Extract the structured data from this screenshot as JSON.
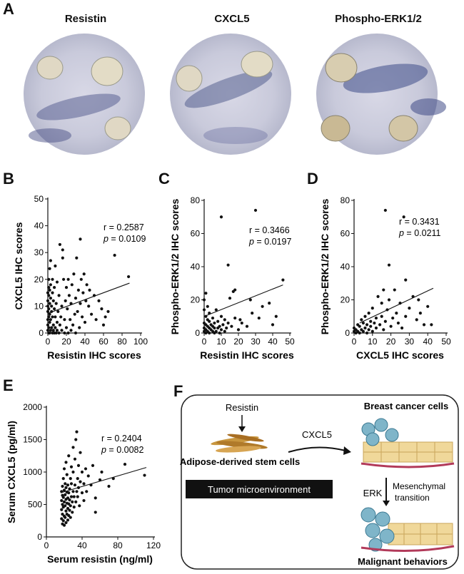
{
  "panels": {
    "A": {
      "letter": "A",
      "stains": [
        {
          "name": "Resistin"
        },
        {
          "name": "CXCL5"
        },
        {
          "name": "Phospho-ERK1/2"
        }
      ]
    },
    "F": {
      "letter": "F",
      "resistin": "Resistin",
      "adsc": "Adipose-derived stem cells",
      "cxcl5": "CXCL5",
      "bcc": "Breast cancer cells",
      "erk": "ERK",
      "mesenchymal": "Mesenchymal",
      "transition": "transition",
      "tme": "Tumor microenvironment",
      "malignant": "Malignant behaviors"
    }
  },
  "chart_data": [
    {
      "id": "B",
      "letter": "B",
      "type": "scatter",
      "xlabel": "Resistin IHC scores",
      "ylabel": "CXCL5 IHC scores",
      "xlim": [
        0,
        100
      ],
      "ylim": [
        0,
        50
      ],
      "xticks": [
        0,
        20,
        40,
        60,
        80,
        100
      ],
      "yticks": [
        0,
        10,
        20,
        30,
        40,
        50
      ],
      "r_text": "r = 0.2587",
      "p_label": "p",
      "p_value": " = 0.0109",
      "fit": [
        [
          0,
          7.3
        ],
        [
          88,
          18.6
        ]
      ],
      "points": [
        [
          0,
          1
        ],
        [
          0,
          3
        ],
        [
          0,
          5
        ],
        [
          0,
          8
        ],
        [
          0,
          10
        ],
        [
          0,
          12
        ],
        [
          0,
          15
        ],
        [
          1,
          0
        ],
        [
          1,
          2
        ],
        [
          1,
          6
        ],
        [
          1,
          9
        ],
        [
          1,
          14
        ],
        [
          1,
          17
        ],
        [
          1,
          20
        ],
        [
          2,
          0
        ],
        [
          2,
          4
        ],
        [
          2,
          7
        ],
        [
          2,
          11
        ],
        [
          2,
          16
        ],
        [
          2,
          24
        ],
        [
          3,
          1
        ],
        [
          3,
          5
        ],
        [
          3,
          13
        ],
        [
          3,
          18
        ],
        [
          3,
          27
        ],
        [
          4,
          2
        ],
        [
          4,
          8
        ],
        [
          4,
          10
        ],
        [
          5,
          0
        ],
        [
          5,
          6
        ],
        [
          5,
          15
        ],
        [
          5,
          20
        ],
        [
          6,
          1
        ],
        [
          6,
          3
        ],
        [
          6,
          12
        ],
        [
          7,
          0
        ],
        [
          7,
          9
        ],
        [
          7,
          17
        ],
        [
          8,
          2
        ],
        [
          8,
          6
        ],
        [
          8,
          25
        ],
        [
          9,
          0
        ],
        [
          9,
          11
        ],
        [
          10,
          1
        ],
        [
          10,
          4
        ],
        [
          10,
          19
        ],
        [
          11,
          8
        ],
        [
          12,
          0
        ],
        [
          12,
          14
        ],
        [
          13,
          33
        ],
        [
          13,
          3
        ],
        [
          14,
          6
        ],
        [
          15,
          1
        ],
        [
          15,
          10
        ],
        [
          16,
          31
        ],
        [
          16,
          28
        ],
        [
          17,
          20
        ],
        [
          18,
          0
        ],
        [
          18,
          5
        ],
        [
          19,
          12
        ],
        [
          20,
          2
        ],
        [
          20,
          17
        ],
        [
          21,
          9
        ],
        [
          22,
          0
        ],
        [
          22,
          20
        ],
        [
          23,
          14
        ],
        [
          24,
          5
        ],
        [
          25,
          1
        ],
        [
          25,
          11
        ],
        [
          26,
          18
        ],
        [
          27,
          3
        ],
        [
          28,
          22
        ],
        [
          29,
          7
        ],
        [
          30,
          0
        ],
        [
          30,
          13
        ],
        [
          31,
          28
        ],
        [
          32,
          8
        ],
        [
          33,
          16
        ],
        [
          34,
          2
        ],
        [
          35,
          35
        ],
        [
          35,
          11
        ],
        [
          36,
          20
        ],
        [
          37,
          6
        ],
        [
          38,
          15
        ],
        [
          39,
          22
        ],
        [
          40,
          4
        ],
        [
          41,
          12
        ],
        [
          42,
          18
        ],
        [
          44,
          10
        ],
        [
          45,
          16
        ],
        [
          47,
          7
        ],
        [
          50,
          14
        ],
        [
          52,
          5
        ],
        [
          55,
          12
        ],
        [
          58,
          9
        ],
        [
          60,
          3
        ],
        [
          62,
          6
        ],
        [
          65,
          8
        ],
        [
          72,
          29
        ],
        [
          87,
          21
        ]
      ]
    },
    {
      "id": "C",
      "letter": "C",
      "type": "scatter",
      "xlabel": "Resistin IHC scores",
      "ylabel": "Phospho-ERK1/2 IHC scores",
      "xlim": [
        0,
        50
      ],
      "ylim": [
        0,
        80
      ],
      "xticks": [
        0,
        10,
        20,
        30,
        40,
        50
      ],
      "yticks": [
        0,
        20,
        40,
        60,
        80
      ],
      "r_text": "r = 0.3466",
      "p_label": "p",
      "p_value": " = 0.0197",
      "fit": [
        [
          0,
          10
        ],
        [
          46,
          29
        ]
      ],
      "points": [
        [
          0,
          1
        ],
        [
          0,
          3
        ],
        [
          0,
          6
        ],
        [
          0,
          14
        ],
        [
          0,
          20
        ],
        [
          1,
          0
        ],
        [
          1,
          2
        ],
        [
          1,
          5
        ],
        [
          1,
          10
        ],
        [
          1,
          24
        ],
        [
          2,
          1
        ],
        [
          2,
          4
        ],
        [
          2,
          8
        ],
        [
          2,
          16
        ],
        [
          3,
          0
        ],
        [
          3,
          3
        ],
        [
          3,
          7
        ],
        [
          3,
          12
        ],
        [
          4,
          2
        ],
        [
          4,
          5
        ],
        [
          5,
          1
        ],
        [
          5,
          4
        ],
        [
          5,
          9
        ],
        [
          6,
          0
        ],
        [
          6,
          3
        ],
        [
          6,
          6
        ],
        [
          7,
          1
        ],
        [
          7,
          14
        ],
        [
          8,
          3
        ],
        [
          8,
          7
        ],
        [
          9,
          0
        ],
        [
          9,
          4
        ],
        [
          10,
          2
        ],
        [
          10,
          10
        ],
        [
          10,
          70
        ],
        [
          11,
          5
        ],
        [
          12,
          1
        ],
        [
          12,
          8
        ],
        [
          13,
          3
        ],
        [
          14,
          41
        ],
        [
          14,
          6
        ],
        [
          15,
          21
        ],
        [
          16,
          4
        ],
        [
          17,
          25
        ],
        [
          18,
          9
        ],
        [
          18,
          26
        ],
        [
          20,
          2
        ],
        [
          21,
          8
        ],
        [
          22,
          6
        ],
        [
          25,
          4
        ],
        [
          27,
          20
        ],
        [
          28,
          12
        ],
        [
          30,
          74
        ],
        [
          32,
          9
        ],
        [
          34,
          16
        ],
        [
          38,
          18
        ],
        [
          40,
          5
        ],
        [
          42,
          10
        ],
        [
          46,
          32
        ]
      ]
    },
    {
      "id": "D",
      "letter": "D",
      "type": "scatter",
      "xlabel": "CXCL5 IHC scores",
      "ylabel": "Phospho-ERK1/2 IHC scores",
      "xlim": [
        0,
        50
      ],
      "ylim": [
        0,
        80
      ],
      "xticks": [
        0,
        10,
        20,
        30,
        40,
        50
      ],
      "yticks": [
        0,
        20,
        40,
        60,
        80
      ],
      "r_text": "r = 0.3431",
      "p_label": "p",
      "p_value": " = 0.0211",
      "fit": [
        [
          3,
          6
        ],
        [
          43,
          27
        ]
      ],
      "points": [
        [
          0,
          1
        ],
        [
          0,
          3
        ],
        [
          1,
          0
        ],
        [
          1,
          2
        ],
        [
          2,
          1
        ],
        [
          2,
          5
        ],
        [
          3,
          0
        ],
        [
          3,
          4
        ],
        [
          4,
          2
        ],
        [
          4,
          8
        ],
        [
          5,
          1
        ],
        [
          5,
          6
        ],
        [
          6,
          3
        ],
        [
          6,
          10
        ],
        [
          7,
          0
        ],
        [
          7,
          5
        ],
        [
          8,
          2
        ],
        [
          8,
          12
        ],
        [
          9,
          4
        ],
        [
          9,
          7
        ],
        [
          10,
          1
        ],
        [
          10,
          15
        ],
        [
          11,
          6
        ],
        [
          12,
          3
        ],
        [
          12,
          9
        ],
        [
          13,
          22
        ],
        [
          14,
          5
        ],
        [
          15,
          10
        ],
        [
          15,
          18
        ],
        [
          16,
          2
        ],
        [
          16,
          26
        ],
        [
          17,
          74
        ],
        [
          17,
          7
        ],
        [
          18,
          14
        ],
        [
          19,
          41
        ],
        [
          19,
          20
        ],
        [
          20,
          4
        ],
        [
          21,
          9
        ],
        [
          22,
          26
        ],
        [
          23,
          12
        ],
        [
          24,
          6
        ],
        [
          25,
          18
        ],
        [
          26,
          3
        ],
        [
          27,
          70
        ],
        [
          28,
          10
        ],
        [
          28,
          32
        ],
        [
          30,
          15
        ],
        [
          32,
          22
        ],
        [
          34,
          8
        ],
        [
          35,
          20
        ],
        [
          36,
          12
        ],
        [
          38,
          5
        ],
        [
          40,
          16
        ],
        [
          42,
          5
        ]
      ]
    },
    {
      "id": "E",
      "letter": "E",
      "type": "scatter",
      "xlabel": "Serum resistin (ng/ml)",
      "ylabel": "Serum CXCL5 (pg/ml)",
      "xlim": [
        0,
        120
      ],
      "ylim": [
        0,
        2000
      ],
      "xticks": [
        0,
        40,
        80,
        120
      ],
      "yticks": [
        0,
        500,
        1000,
        1500,
        2000
      ],
      "r_text": "r = 0.2404",
      "p_label": "p",
      "p_value": " = 0.0082",
      "fit": [
        [
          16,
          680
        ],
        [
          112,
          1070
        ]
      ],
      "points": [
        [
          17,
          280
        ],
        [
          17,
          420
        ],
        [
          17,
          560
        ],
        [
          17,
          700
        ],
        [
          18,
          200
        ],
        [
          18,
          350
        ],
        [
          18,
          500
        ],
        [
          18,
          640
        ],
        [
          18,
          780
        ],
        [
          19,
          250
        ],
        [
          19,
          460
        ],
        [
          19,
          610
        ],
        [
          19,
          900
        ],
        [
          20,
          180
        ],
        [
          20,
          320
        ],
        [
          20,
          540
        ],
        [
          20,
          720
        ],
        [
          20,
          1050
        ],
        [
          21,
          300
        ],
        [
          21,
          480
        ],
        [
          21,
          650
        ],
        [
          21,
          820
        ],
        [
          22,
          220
        ],
        [
          22,
          400
        ],
        [
          22,
          580
        ],
        [
          22,
          760
        ],
        [
          22,
          1150
        ],
        [
          23,
          350
        ],
        [
          23,
          520
        ],
        [
          23,
          690
        ],
        [
          23,
          960
        ],
        [
          24,
          260
        ],
        [
          24,
          440
        ],
        [
          24,
          600
        ],
        [
          24,
          800
        ],
        [
          25,
          330
        ],
        [
          25,
          510
        ],
        [
          25,
          680
        ],
        [
          25,
          1250
        ],
        [
          26,
          410
        ],
        [
          26,
          570
        ],
        [
          26,
          740
        ],
        [
          27,
          300
        ],
        [
          27,
          480
        ],
        [
          27,
          900
        ],
        [
          28,
          620
        ],
        [
          28,
          820
        ],
        [
          28,
          1080
        ],
        [
          29,
          380
        ],
        [
          29,
          540
        ],
        [
          30,
          700
        ],
        [
          30,
          1000
        ],
        [
          30,
          1380
        ],
        [
          31,
          460
        ],
        [
          31,
          620
        ],
        [
          32,
          800
        ],
        [
          32,
          1200
        ],
        [
          33,
          1500
        ],
        [
          33,
          540
        ],
        [
          34,
          700
        ],
        [
          34,
          1620
        ],
        [
          35,
          900
        ],
        [
          35,
          620
        ],
        [
          36,
          1100
        ],
        [
          36,
          760
        ],
        [
          37,
          480
        ],
        [
          38,
          850
        ],
        [
          38,
          1300
        ],
        [
          40,
          680
        ],
        [
          40,
          1000
        ],
        [
          42,
          560
        ],
        [
          42,
          820
        ],
        [
          44,
          1050
        ],
        [
          45,
          700
        ],
        [
          47,
          940
        ],
        [
          50,
          800
        ],
        [
          52,
          1100
        ],
        [
          55,
          600
        ],
        [
          55,
          380
        ],
        [
          60,
          880
        ],
        [
          62,
          1000
        ],
        [
          70,
          780
        ],
        [
          75,
          900
        ],
        [
          88,
          1120
        ],
        [
          110,
          950
        ]
      ]
    }
  ]
}
